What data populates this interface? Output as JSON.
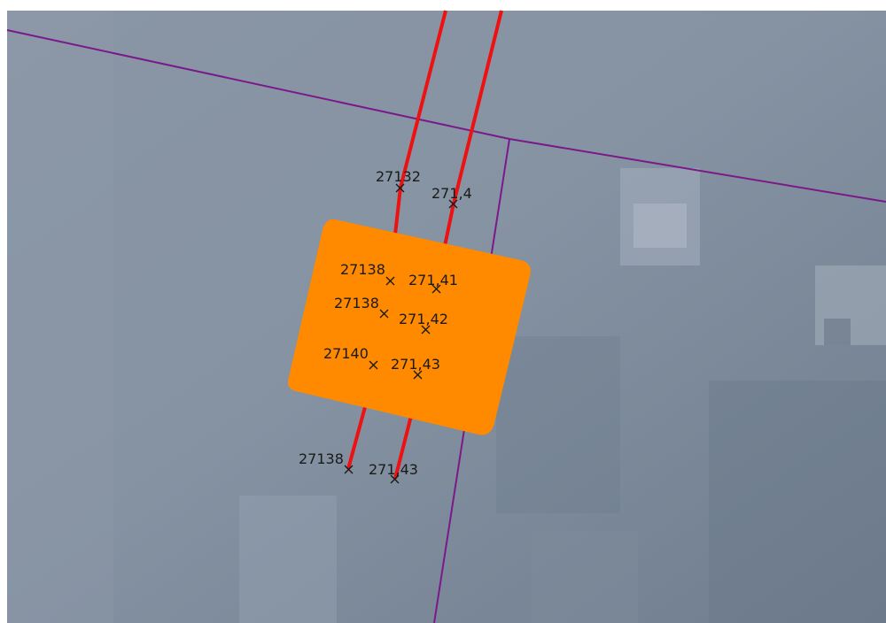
{
  "map": {
    "layers": {
      "raster": {
        "name": "elevation-raster"
      },
      "parcel_boundaries": {
        "color": "#7a1a8a"
      },
      "red_lines": {
        "color": "#ee1111"
      },
      "highlight_polygon": {
        "color": "#ff8a00"
      }
    },
    "point_labels": {
      "top_left": "27132",
      "top_right": "271,4",
      "inner_1_left": "27138",
      "inner_1_right": "271,41",
      "inner_2_left": "27138",
      "inner_2_right": "271,42",
      "inner_3_left": "27140",
      "inner_3_right": "271,43",
      "bottom_left": "27138",
      "bottom_right": "271,43"
    }
  }
}
